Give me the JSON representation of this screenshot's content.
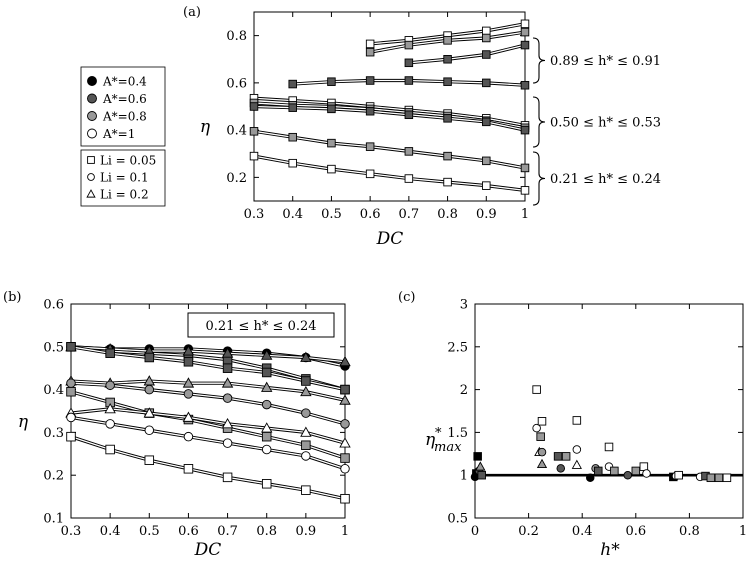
{
  "chart_data": [
    {
      "panel": "(a)",
      "type": "line",
      "xlabel": "DC",
      "ylabel": "η",
      "xlim": [
        0.3,
        1
      ],
      "ylim": [
        0.1,
        0.9
      ],
      "xticks": [
        "0.3",
        "0.4",
        "0.5",
        "0.6",
        "0.7",
        "0.8",
        "0.9",
        "1"
      ],
      "yticks": [
        "0.2",
        "0.4",
        "0.6",
        "0.8"
      ],
      "annotations": [
        "0.89 ≤ h* ≤ 0.91",
        "0.50 ≤ h* ≤ 0.53",
        "0.21 ≤ h* ≤ 0.24"
      ],
      "legend": {
        "amplitude": [
          {
            "label": "A*=0.4",
            "fill": "#000000"
          },
          {
            "label": "A*=0.6",
            "fill": "#555555"
          },
          {
            "label": "A*=0.8",
            "fill": "#999999"
          },
          {
            "label": "A*=1",
            "fill": "#ffffff"
          }
        ],
        "lighthill": [
          {
            "label": "Li = 0.05",
            "marker": "square"
          },
          {
            "label": "Li = 0.1",
            "marker": "circle"
          },
          {
            "label": "Li = 0.2",
            "marker": "triangle"
          }
        ]
      },
      "series": [
        {
          "marker": "square",
          "fill": "#ffffff",
          "x": [
            0.6,
            0.7,
            0.8,
            0.9,
            1.0
          ],
          "y": [
            0.765,
            0.78,
            0.8,
            0.82,
            0.85
          ]
        },
        {
          "marker": "square",
          "fill": "#999999",
          "x": [
            0.6,
            0.7,
            0.8,
            0.9,
            1.0
          ],
          "y": [
            0.73,
            0.76,
            0.78,
            0.79,
            0.815
          ]
        },
        {
          "marker": "square",
          "fill": "#555555",
          "x": [
            0.7,
            0.8,
            0.9,
            1.0
          ],
          "y": [
            0.685,
            0.7,
            0.72,
            0.76
          ]
        },
        {
          "marker": "square",
          "fill": "#555555",
          "x": [
            0.4,
            0.5,
            0.6,
            0.7,
            0.8,
            0.9,
            1.0
          ],
          "y": [
            0.595,
            0.605,
            0.61,
            0.61,
            0.605,
            0.6,
            0.59
          ]
        },
        {
          "marker": "square",
          "fill": "#ffffff",
          "x": [
            0.3,
            0.4,
            0.5,
            0.6,
            0.7,
            0.8,
            0.9,
            1.0
          ],
          "y": [
            0.535,
            0.525,
            0.515,
            0.5,
            0.485,
            0.47,
            0.45,
            0.42
          ]
        },
        {
          "marker": "square",
          "fill": "#999999",
          "x": [
            0.3,
            0.4,
            0.5,
            0.6,
            0.7,
            0.8,
            0.9,
            1.0
          ],
          "y": [
            0.515,
            0.505,
            0.5,
            0.49,
            0.475,
            0.46,
            0.44,
            0.41
          ]
        },
        {
          "marker": "square",
          "fill": "#555555",
          "x": [
            0.3,
            0.4,
            0.5,
            0.6,
            0.7,
            0.8,
            0.9,
            1.0
          ],
          "y": [
            0.5,
            0.495,
            0.49,
            0.48,
            0.465,
            0.45,
            0.435,
            0.4
          ]
        },
        {
          "marker": "square",
          "fill": "#999999",
          "x": [
            0.3,
            0.4,
            0.5,
            0.6,
            0.7,
            0.8,
            0.9,
            1.0
          ],
          "y": [
            0.395,
            0.37,
            0.345,
            0.33,
            0.31,
            0.29,
            0.27,
            0.24
          ]
        },
        {
          "marker": "square",
          "fill": "#ffffff",
          "x": [
            0.3,
            0.4,
            0.5,
            0.6,
            0.7,
            0.8,
            0.9,
            1.0
          ],
          "y": [
            0.29,
            0.26,
            0.235,
            0.215,
            0.195,
            0.18,
            0.165,
            0.145
          ]
        }
      ]
    },
    {
      "panel": "(b)",
      "type": "line",
      "xlabel": "DC",
      "ylabel": "η",
      "xlim": [
        0.3,
        1
      ],
      "ylim": [
        0.1,
        0.6
      ],
      "xticks": [
        "0.3",
        "0.4",
        "0.5",
        "0.6",
        "0.7",
        "0.8",
        "0.9",
        "1"
      ],
      "yticks": [
        "0.1",
        "0.2",
        "0.3",
        "0.4",
        "0.5",
        "0.6"
      ],
      "annotations": [
        "0.21 ≤ h* ≤ 0.24"
      ],
      "series": [
        {
          "marker": "square",
          "fill": "#555555",
          "x": [
            0.3,
            0.4,
            0.5,
            0.6,
            0.7,
            0.8,
            0.9,
            1.0
          ],
          "y": [
            0.5,
            0.49,
            0.485,
            0.48,
            0.47,
            0.45,
            0.425,
            0.4
          ]
        },
        {
          "marker": "circle",
          "fill": "#000000",
          "x": [
            0.3,
            0.4,
            0.5,
            0.6,
            0.7,
            0.8,
            0.9,
            1.0
          ],
          "y": [
            0.5,
            0.495,
            0.495,
            0.495,
            0.49,
            0.485,
            0.475,
            0.455
          ]
        },
        {
          "marker": "triangle",
          "fill": "#555555",
          "x": [
            0.3,
            0.4,
            0.5,
            0.6,
            0.7,
            0.8,
            0.9,
            1.0
          ],
          "y": [
            0.5,
            0.495,
            0.49,
            0.49,
            0.485,
            0.48,
            0.475,
            0.465
          ]
        },
        {
          "marker": "square",
          "fill": "#555555",
          "x": [
            0.3,
            0.4,
            0.5,
            0.6,
            0.7,
            0.8,
            0.9,
            1.0
          ],
          "y": [
            0.5,
            0.485,
            0.475,
            0.465,
            0.45,
            0.44,
            0.42,
            0.4
          ]
        },
        {
          "marker": "triangle",
          "fill": "#999999",
          "x": [
            0.3,
            0.4,
            0.5,
            0.6,
            0.7,
            0.8,
            0.9,
            1.0
          ],
          "y": [
            0.42,
            0.415,
            0.42,
            0.415,
            0.415,
            0.405,
            0.395,
            0.375
          ]
        },
        {
          "marker": "circle",
          "fill": "#999999",
          "x": [
            0.3,
            0.4,
            0.5,
            0.6,
            0.7,
            0.8,
            0.9,
            1.0
          ],
          "y": [
            0.415,
            0.41,
            0.4,
            0.39,
            0.38,
            0.365,
            0.345,
            0.32
          ]
        },
        {
          "marker": "square",
          "fill": "#999999",
          "x": [
            0.3,
            0.4,
            0.5,
            0.6,
            0.7,
            0.8,
            0.9,
            1.0
          ],
          "y": [
            0.395,
            0.37,
            0.345,
            0.33,
            0.31,
            0.29,
            0.27,
            0.24
          ]
        },
        {
          "marker": "triangle",
          "fill": "#ffffff",
          "x": [
            0.3,
            0.4,
            0.5,
            0.6,
            0.7,
            0.8,
            0.9,
            1.0
          ],
          "y": [
            0.345,
            0.355,
            0.345,
            0.335,
            0.32,
            0.31,
            0.3,
            0.275
          ]
        },
        {
          "marker": "circle",
          "fill": "#ffffff",
          "x": [
            0.3,
            0.4,
            0.5,
            0.6,
            0.7,
            0.8,
            0.9,
            1.0
          ],
          "y": [
            0.335,
            0.32,
            0.305,
            0.29,
            0.275,
            0.26,
            0.245,
            0.215
          ]
        },
        {
          "marker": "square",
          "fill": "#ffffff",
          "x": [
            0.3,
            0.4,
            0.5,
            0.6,
            0.7,
            0.8,
            0.9,
            1.0
          ],
          "y": [
            0.29,
            0.26,
            0.235,
            0.215,
            0.195,
            0.18,
            0.165,
            0.145
          ]
        }
      ]
    },
    {
      "panel": "(c)",
      "type": "scatter",
      "xlabel": "h*",
      "ylabel": "η*max",
      "xlim": [
        0,
        1
      ],
      "ylim": [
        0.5,
        3
      ],
      "xticks": [
        "0",
        "0.2",
        "0.4",
        "0.6",
        "0.8",
        "1"
      ],
      "yticks": [
        "0.5",
        "1",
        "1.5",
        "2",
        "2.5",
        "3"
      ],
      "reference_line_y": 1,
      "points": [
        {
          "x": 0.0,
          "y": 0.98,
          "marker": "circle",
          "fill": "#000000"
        },
        {
          "x": 0.005,
          "y": 1.02,
          "marker": "square",
          "fill": "#000000"
        },
        {
          "x": 0.01,
          "y": 1.22,
          "marker": "square",
          "fill": "#000000"
        },
        {
          "x": 0.015,
          "y": 1.05,
          "marker": "circle",
          "fill": "#555555"
        },
        {
          "x": 0.02,
          "y": 1.1,
          "marker": "triangle",
          "fill": "#999999"
        },
        {
          "x": 0.025,
          "y": 1.0,
          "marker": "square",
          "fill": "#555555"
        },
        {
          "x": 0.23,
          "y": 2.0,
          "marker": "square",
          "fill": "#ffffff"
        },
        {
          "x": 0.23,
          "y": 1.55,
          "marker": "circle",
          "fill": "#ffffff"
        },
        {
          "x": 0.24,
          "y": 1.27,
          "marker": "triangle",
          "fill": "#ffffff"
        },
        {
          "x": 0.245,
          "y": 1.45,
          "marker": "square",
          "fill": "#999999"
        },
        {
          "x": 0.25,
          "y": 1.63,
          "marker": "square",
          "fill": "#ffffff"
        },
        {
          "x": 0.25,
          "y": 1.27,
          "marker": "circle",
          "fill": "#999999"
        },
        {
          "x": 0.25,
          "y": 1.13,
          "marker": "triangle",
          "fill": "#999999"
        },
        {
          "x": 0.31,
          "y": 1.22,
          "marker": "square",
          "fill": "#555555"
        },
        {
          "x": 0.32,
          "y": 1.08,
          "marker": "circle",
          "fill": "#555555"
        },
        {
          "x": 0.34,
          "y": 1.22,
          "marker": "square",
          "fill": "#999999"
        },
        {
          "x": 0.38,
          "y": 1.64,
          "marker": "square",
          "fill": "#ffffff"
        },
        {
          "x": 0.38,
          "y": 1.3,
          "marker": "circle",
          "fill": "#ffffff"
        },
        {
          "x": 0.38,
          "y": 1.12,
          "marker": "triangle",
          "fill": "#ffffff"
        },
        {
          "x": 0.43,
          "y": 0.97,
          "marker": "circle",
          "fill": "#000000"
        },
        {
          "x": 0.45,
          "y": 1.08,
          "marker": "circle",
          "fill": "#999999"
        },
        {
          "x": 0.46,
          "y": 1.05,
          "marker": "square",
          "fill": "#555555"
        },
        {
          "x": 0.5,
          "y": 1.33,
          "marker": "square",
          "fill": "#ffffff"
        },
        {
          "x": 0.5,
          "y": 1.1,
          "marker": "circle",
          "fill": "#ffffff"
        },
        {
          "x": 0.52,
          "y": 1.05,
          "marker": "square",
          "fill": "#999999"
        },
        {
          "x": 0.57,
          "y": 1.0,
          "marker": "circle",
          "fill": "#555555"
        },
        {
          "x": 0.6,
          "y": 1.05,
          "marker": "square",
          "fill": "#999999"
        },
        {
          "x": 0.63,
          "y": 1.1,
          "marker": "square",
          "fill": "#ffffff"
        },
        {
          "x": 0.64,
          "y": 1.02,
          "marker": "circle",
          "fill": "#ffffff"
        },
        {
          "x": 0.74,
          "y": 0.98,
          "marker": "square",
          "fill": "#000000"
        },
        {
          "x": 0.75,
          "y": 0.99,
          "marker": "circle",
          "fill": "#ffffff"
        },
        {
          "x": 0.76,
          "y": 1.0,
          "marker": "square",
          "fill": "#ffffff"
        },
        {
          "x": 0.84,
          "y": 0.98,
          "marker": "circle",
          "fill": "#ffffff"
        },
        {
          "x": 0.86,
          "y": 0.99,
          "marker": "square",
          "fill": "#555555"
        },
        {
          "x": 0.88,
          "y": 0.97,
          "marker": "square",
          "fill": "#999999"
        },
        {
          "x": 0.91,
          "y": 0.97,
          "marker": "square",
          "fill": "#999999"
        },
        {
          "x": 0.94,
          "y": 0.97,
          "marker": "square",
          "fill": "#ffffff"
        }
      ]
    }
  ]
}
